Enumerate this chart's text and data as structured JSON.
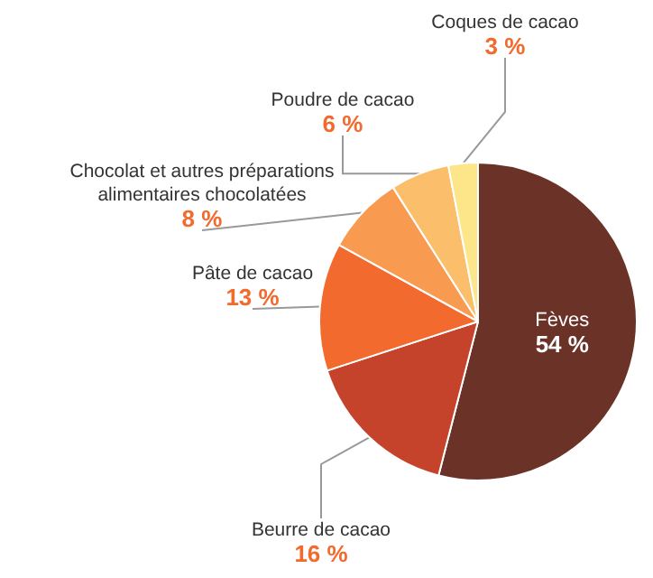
{
  "chart_data": {
    "type": "pie",
    "categories": [
      "Fèves",
      "Beurre de cacao",
      "Pâte de cacao",
      "Chocolat et autres préparations alimentaires chocolatées",
      "Poudre de cacao",
      "Coques de cacao"
    ],
    "values": [
      54,
      16,
      13,
      8,
      6,
      3
    ],
    "value_labels": [
      "54 %",
      "16 %",
      "13 %",
      "8 %",
      "6 %",
      "3 %"
    ],
    "colors": [
      "#6b3327",
      "#c5432a",
      "#f26a2e",
      "#f89a4f",
      "#fbbf6b",
      "#fde58a"
    ],
    "legend": false
  }
}
